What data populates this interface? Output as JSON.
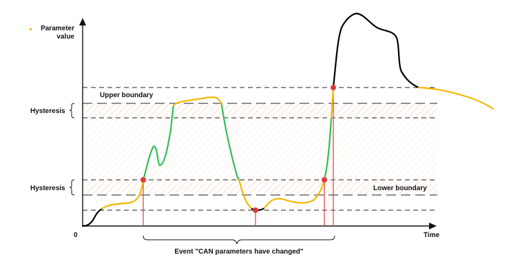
{
  "labels": {
    "y_axis_line1": "Parameter",
    "y_axis_line2": "value",
    "x_axis": "Time",
    "origin": "0",
    "upper_boundary": "Upper boundary",
    "lower_boundary": "Lower boundary",
    "hysteresis_upper": "Hysteresis",
    "hysteresis_lower": "Hysteresis",
    "event": "Event \"CAN parameters have changed\""
  },
  "colors": {
    "inside_band": "#2fbf55",
    "outside_band": "#f5b800",
    "above_upper": "#000000",
    "event_marker": "#e53935",
    "event_line": "#e53935",
    "hatch": "#f6c4a8",
    "boundary_line": "#222222",
    "axis": "#111111"
  }
}
